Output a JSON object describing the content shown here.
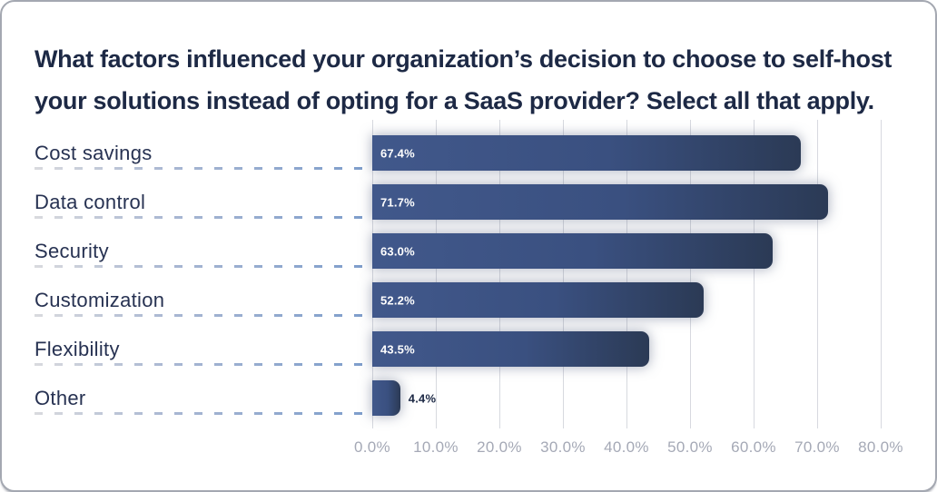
{
  "title": {
    "lines": [
      "What factors influenced your organization’s decision to choose to self-host",
      "your solutions instead of opting for a SaaS provider? Select all that apply."
    ]
  },
  "chart_data": {
    "type": "bar",
    "orientation": "horizontal",
    "title": "What factors influenced your organization’s decision to choose to self-host your solutions instead of opting for a SaaS provider? Select all that apply.",
    "categories": [
      "Cost savings",
      "Data control",
      "Security",
      "Customization",
      "Flexibility",
      "Other"
    ],
    "values": [
      67.4,
      71.7,
      63.0,
      52.2,
      43.5,
      4.4
    ],
    "value_labels": [
      "67.4%",
      "71.7%",
      "63.0%",
      "52.2%",
      "43.5%",
      "4.4%"
    ],
    "x_tick_labels": [
      "0.0%",
      "10.0%",
      "20.0%",
      "30.0%",
      "40.0%",
      "50.0%",
      "60.0%",
      "70.0%",
      "80.0%"
    ],
    "xlabel": "",
    "ylabel": "",
    "xlim": [
      0,
      86
    ],
    "grid": "vertical",
    "legend": "none",
    "colors": {
      "bar_gradient_start": "#41588b",
      "bar_gradient_end": "#2b3a55",
      "title_text": "#1d2945",
      "category_text": "#273252",
      "value_text_inside": "#ffffff",
      "value_text_outside": "#1d2945",
      "gridline": "#d7d9df",
      "axis_text": "#a5a9b6",
      "dash_line_start": "#d9dade",
      "dash_line_end": "#7d9dcb",
      "card_border": "#a4a8b1",
      "card_background": "#ffffff"
    }
  }
}
